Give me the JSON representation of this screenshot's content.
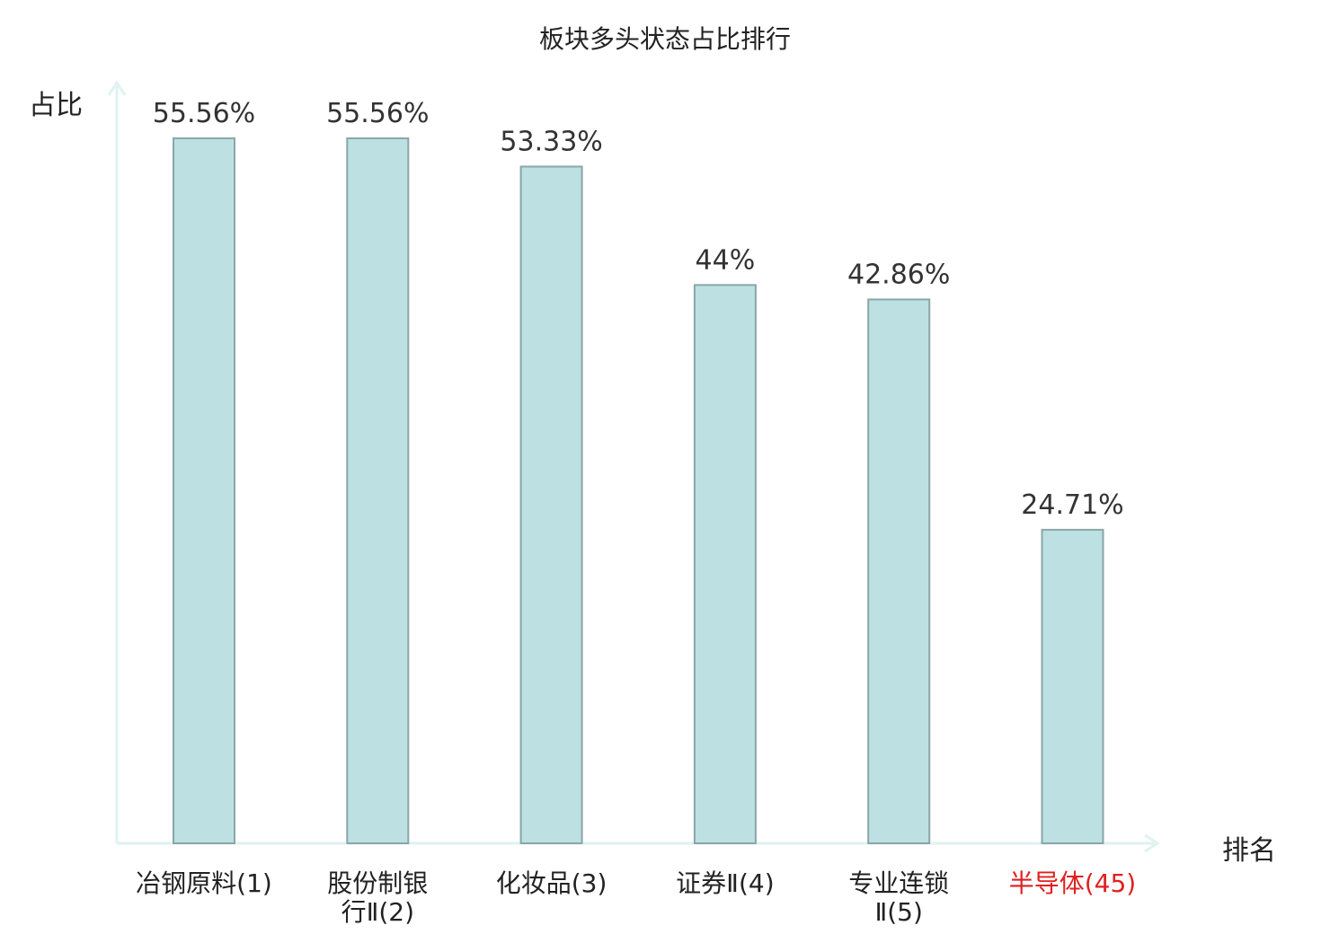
{
  "chart_data": {
    "type": "bar",
    "title": "板块多头状态占比排行",
    "xlabel": "排名",
    "ylabel": "占比",
    "categories": [
      {
        "lines": [
          "冶钢原料(1)"
        ],
        "highlight": false
      },
      {
        "lines": [
          "股份制银",
          "行Ⅱ(2)"
        ],
        "highlight": false
      },
      {
        "lines": [
          "化妆品(3)"
        ],
        "highlight": false
      },
      {
        "lines": [
          "证券Ⅱ(4)"
        ],
        "highlight": false
      },
      {
        "lines": [
          "专业连锁",
          "Ⅱ(5)"
        ],
        "highlight": false
      },
      {
        "lines": [
          "半导体(45)"
        ],
        "highlight": true
      }
    ],
    "values": [
      55.56,
      55.56,
      53.33,
      44,
      42.86,
      24.71
    ],
    "value_labels": [
      "55.56%",
      "55.56%",
      "53.33%",
      "44%",
      "42.86%",
      "24.71%"
    ],
    "ylim": [
      0,
      60
    ],
    "grid": false,
    "colors": {
      "bar_fill": "#bde0e3",
      "bar_stroke": "#8aa6a8",
      "axis": "#e0f2f1",
      "label_text": "#222222",
      "value_text": "#333333",
      "highlight_text": "#e02020"
    }
  }
}
